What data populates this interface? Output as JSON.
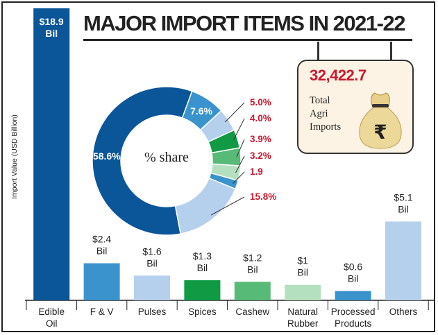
{
  "title": "MAJOR IMPORT ITEMS IN 2021-22",
  "y_axis_label": "Import Value (USD Billion)",
  "total_box": {
    "value": "32,422.7",
    "line1": "Total",
    "line2": "Agri",
    "line3": "Imports",
    "icon": "rupee-money-bag-icon"
  },
  "donut_center_label": "% share",
  "colors": {
    "dark_blue": "#0b5599",
    "mid_blue": "#3a93cc",
    "light_blue": "#b4d0ec",
    "dark_green": "#0f9a43",
    "mid_green": "#57bb77",
    "pale_green": "#b4e0c0",
    "red_label": "#c8192d",
    "axis": "#222222"
  },
  "chart_data": [
    {
      "type": "bar",
      "ylabel": "Import Value (USD Billion)",
      "categories": [
        "Edible Oil",
        "F & V",
        "Pulses",
        "Spices",
        "Cashew",
        "Natural Rubber",
        "Processed Products",
        "Others"
      ],
      "values": [
        18.9,
        2.4,
        1.6,
        1.3,
        1.2,
        1,
        0.6,
        5.1
      ],
      "data_labels": [
        [
          "$18.9",
          "Bil"
        ],
        [
          "$2.4",
          "Bil"
        ],
        [
          "$1.6",
          "Bil"
        ],
        [
          "$1.3",
          "Bil"
        ],
        [
          "$1.2",
          "Bil"
        ],
        [
          "$1",
          "Bil"
        ],
        [
          "$0.6",
          "Bil"
        ],
        [
          "$5.1",
          "Bil"
        ]
      ],
      "tick_labels": [
        [
          "Edible",
          "Oil"
        ],
        [
          "F & V"
        ],
        [
          "Pulses"
        ],
        [
          "Spices"
        ],
        [
          "Cashew"
        ],
        [
          "Natural",
          "Rubber"
        ],
        [
          "Processed",
          "Products"
        ],
        [
          "Others"
        ]
      ],
      "bar_colors": [
        "#0b5599",
        "#3a93cc",
        "#b4d0ec",
        "#0f9a43",
        "#57bb77",
        "#b4e0c0",
        "#3a93cc",
        "#b4d0ec"
      ]
    },
    {
      "type": "pie",
      "center_label": "% share",
      "values": [
        58.6,
        7.6,
        5.0,
        4.0,
        3.9,
        3.2,
        1.9,
        15.8
      ],
      "labels": [
        "58.6%",
        "7.6%",
        "5.0%",
        "4.0%",
        "3.9%",
        "3.2%",
        "1.9",
        "15.8%"
      ],
      "slice_colors": [
        "#0b5599",
        "#3a93cc",
        "#b4d0ec",
        "#0f9a43",
        "#57bb77",
        "#b4e0c0",
        "#3a93cc",
        "#b4d0ec"
      ]
    }
  ]
}
